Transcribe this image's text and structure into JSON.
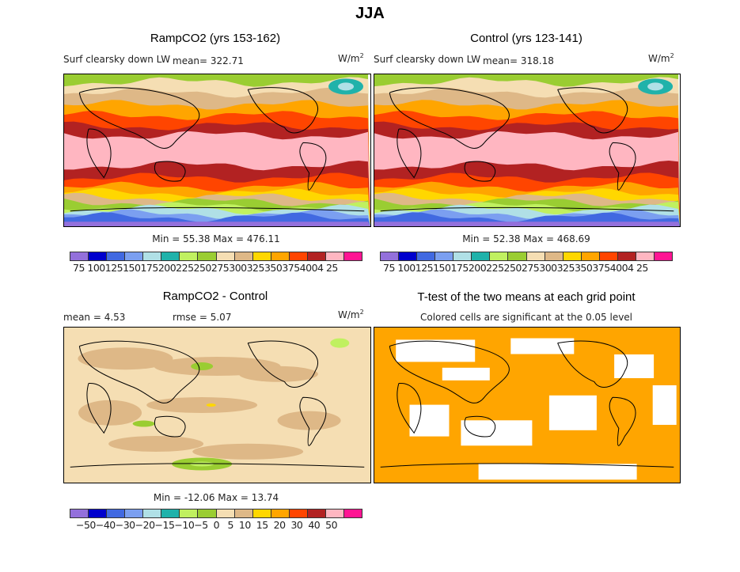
{
  "title": "JJA",
  "panels": [
    {
      "title": "RampCO2 (yrs 153-162)",
      "variable": "Surf clearsky down LW",
      "mean": "mean= 322.71",
      "units": "W/m",
      "units_sup": "2",
      "minmax": "Min =  55.38 Max = 476.11"
    },
    {
      "title": "Control (yrs 123-141)",
      "variable": "Surf clearsky down LW",
      "mean": "mean= 318.18",
      "units": "W/m",
      "units_sup": "2",
      "minmax": "Min =  52.38 Max = 468.69"
    },
    {
      "title": "RampCO2 - Control",
      "mean": "mean =    4.53",
      "rmse": "rmse =    5.07",
      "units": "W/m",
      "units_sup": "2",
      "minmax": "Min = -12.06 Max =  13.74"
    },
    {
      "title": "T-test of the two means at each grid point",
      "subtitle": "Colored cells are significant at the 0.05 level"
    }
  ],
  "colorbar_colors": [
    "#9370db",
    "#0000cd",
    "#4169e1",
    "#7b9ff0",
    "#b0e0e6",
    "#20b2aa",
    "#c0f060",
    "#9acd32",
    "#f5deb3",
    "#deb887",
    "#ffd700",
    "#ffa500",
    "#ff4500",
    "#b22222",
    "#ffb6c1",
    "#ff1493"
  ],
  "colorbar_abs_labels": "75 1001251501752002252502753003253503754004 25",
  "colorbar_abs_text": "75 1001251501752002252502753003253503754004 25",
  "colorbar_abs": "75100125150175200225250275300325350375400425",
  "colorbar_diff": "−50−40−30−20−15−10−5  0   5  10  15  20  30  40  50",
  "ttest_color": "#ffa500"
}
